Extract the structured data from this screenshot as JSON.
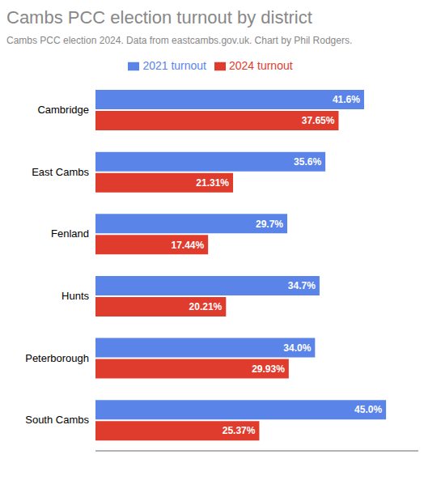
{
  "chart_data": {
    "type": "bar",
    "title": "Cambs PCC election turnout by district",
    "subtitle": "Cambs PCC election 2024. Data from eastcambs.gov.uk. Chart by Phil Rodgers.",
    "orientation": "horizontal",
    "categories": [
      "Cambridge",
      "East Cambs",
      "Fenland",
      "Hunts",
      "Peterborough",
      "South Cambs"
    ],
    "series": [
      {
        "name": "2021 turnout",
        "color": "#5b84e8",
        "values": [
          41.6,
          35.6,
          29.7,
          34.7,
          34.0,
          45.0
        ],
        "value_labels": [
          "41.6%",
          "35.6%",
          "29.7%",
          "34.7%",
          "34.0%",
          "45.0%"
        ]
      },
      {
        "name": "2024 turnout",
        "color": "#e03c2e",
        "values": [
          37.65,
          21.31,
          17.44,
          20.21,
          29.93,
          25.37
        ],
        "value_labels": [
          "37.65%",
          "21.31%",
          "17.44%",
          "20.21%",
          "29.93%",
          "25.37%"
        ]
      }
    ],
    "xlim": [
      0,
      50
    ],
    "data_labels": true,
    "tick_labels": "y",
    "legend": "top",
    "grid": false
  }
}
